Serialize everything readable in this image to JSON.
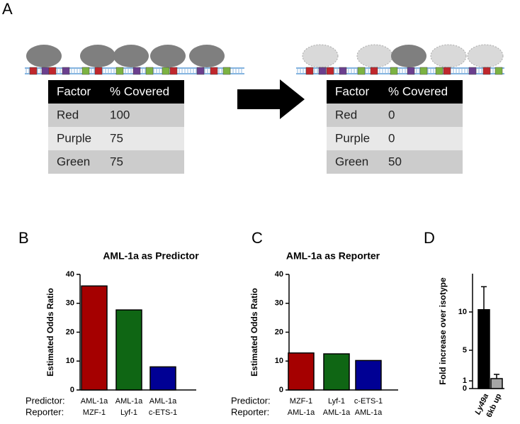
{
  "panel_labels": [
    "A",
    "B",
    "C",
    "D"
  ],
  "tables": [
    {
      "header": [
        "Factor",
        "% Covered"
      ],
      "rows": [
        [
          "Red",
          100
        ],
        [
          "Purple",
          75
        ],
        [
          "Green",
          75
        ]
      ]
    },
    {
      "header": [
        "Factor",
        "% Covered"
      ],
      "rows": [
        [
          "Red",
          0
        ],
        [
          "Purple",
          0
        ],
        [
          "Green",
          50
        ]
      ]
    }
  ],
  "chart_data": [
    {
      "type": "bar",
      "title": "AML-1a as Predictor",
      "y_label": "Estimated Odds Ratio",
      "row_labels": [
        "Predictor:",
        "Reporter:"
      ],
      "categories": [
        "AML-1a",
        "AML-1a",
        "AML-1a"
      ],
      "subcategories": [
        "MZF-1",
        "Lyf-1",
        "c-ETS-1"
      ],
      "values": [
        36,
        27.7,
        8
      ],
      "colors": [
        "#a50000",
        "#0f6614",
        "#000094"
      ],
      "ylim": [
        0,
        40
      ],
      "yticks": [
        0,
        10,
        20,
        30,
        40
      ]
    },
    {
      "type": "bar",
      "title": "AML-1a as Reporter",
      "y_label": "Estimated Odds Ratio",
      "row_labels": [
        "Predictor:",
        "Reporter:"
      ],
      "categories": [
        "MZF-1",
        "Lyf-1",
        "c-ETS-1"
      ],
      "subcategories": [
        "AML-1a",
        "AML-1a",
        "AML-1a"
      ],
      "values": [
        12.8,
        12.5,
        10.2
      ],
      "colors": [
        "#a50000",
        "#0f6614",
        "#000094"
      ],
      "ylim": [
        0,
        40
      ],
      "yticks": [
        0,
        10,
        20,
        30,
        40
      ]
    },
    {
      "type": "bar",
      "y_label": "Fold increase over isotype",
      "categories": [
        "Ly49a",
        "6kb up"
      ],
      "values": [
        10.3,
        1.3
      ],
      "errors": [
        3.0,
        0.55
      ],
      "colors": [
        "#000000",
        "#a6a6a6"
      ],
      "ylim": [
        0,
        15
      ],
      "yticks": [
        0,
        1,
        5,
        10
      ]
    }
  ]
}
